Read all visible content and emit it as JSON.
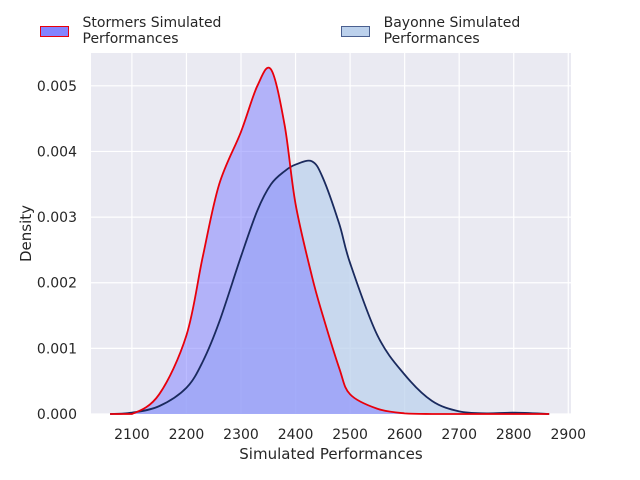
{
  "chart_data": {
    "type": "area",
    "title": "",
    "xlabel": "Simulated Performances",
    "ylabel": "Density",
    "xlim": [
      2025,
      2905
    ],
    "ylim": [
      0,
      0.0055
    ],
    "grid": true,
    "legend_position": "top",
    "x_ticks": [
      "2100",
      "2200",
      "2300",
      "2400",
      "2500",
      "2600",
      "2700",
      "2800",
      "2900"
    ],
    "y_ticks": [
      "0.000",
      "0.001",
      "0.002",
      "0.003",
      "0.004",
      "0.005"
    ],
    "x": [
      2060,
      2100,
      2150,
      2200,
      2230,
      2260,
      2300,
      2330,
      2355,
      2380,
      2400,
      2430,
      2450,
      2480,
      2500,
      2550,
      2600,
      2650,
      2700,
      2750,
      2800,
      2865
    ],
    "series": [
      {
        "name": "Stormers Simulated Performances",
        "line_color": "#e8000b",
        "fill_color": "#8484ff",
        "values": [
          0.0,
          0.0,
          0.0003,
          0.0012,
          0.0024,
          0.0035,
          0.0043,
          0.005,
          0.00525,
          0.0044,
          0.0032,
          0.0021,
          0.0015,
          0.0007,
          0.0003,
          8e-05,
          1e-05,
          0.0,
          0.0,
          0.0,
          0.0,
          0.0
        ]
      },
      {
        "name": "Bayonne Simulated Performances",
        "line_color": "#1a2a5e",
        "fill_color": "#bcd1ec",
        "values": [
          0.0,
          2e-05,
          0.00012,
          0.0004,
          0.0008,
          0.0014,
          0.0024,
          0.0031,
          0.0035,
          0.0037,
          0.0038,
          0.00385,
          0.0036,
          0.0029,
          0.0023,
          0.0012,
          0.0006,
          0.0002,
          4e-05,
          1e-05,
          2e-05,
          0.0
        ]
      }
    ]
  }
}
